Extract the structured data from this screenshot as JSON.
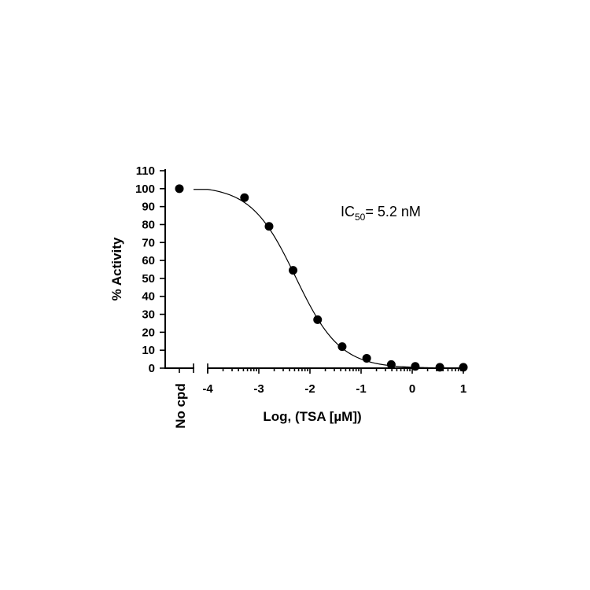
{
  "chart_data": {
    "type": "scatter",
    "xlabel": "Log, (TSA [µM])",
    "ylabel": "% Activity",
    "xlim": [
      -4,
      1
    ],
    "ylim": [
      0,
      110
    ],
    "x_ticks": [
      -4,
      -3,
      -2,
      -1,
      0,
      1
    ],
    "y_ticks": [
      0,
      10,
      20,
      30,
      40,
      50,
      60,
      70,
      80,
      90,
      100,
      110
    ],
    "grid": false,
    "control": {
      "label": "No cpd",
      "value": 100
    },
    "annotation": {
      "prefix": "IC",
      "subscript": "50",
      "suffix": "= 5.2 nM"
    },
    "series": [
      {
        "values": [
          {
            "x": -3.28,
            "y": 95
          },
          {
            "x": -2.8,
            "y": 79
          },
          {
            "x": -2.33,
            "y": 54.5
          },
          {
            "x": -1.85,
            "y": 27
          },
          {
            "x": -1.37,
            "y": 12
          },
          {
            "x": -0.89,
            "y": 5.5
          },
          {
            "x": -0.41,
            "y": 2
          },
          {
            "x": 0.06,
            "y": 1
          },
          {
            "x": 0.54,
            "y": 0.5
          },
          {
            "x": 1.0,
            "y": 0.5
          }
        ]
      }
    ],
    "fit": {
      "model": "four-parameter logistic",
      "top": 101.5,
      "bottom": 0,
      "log_ic50": -2.28,
      "hill_slope": -1.0
    }
  }
}
